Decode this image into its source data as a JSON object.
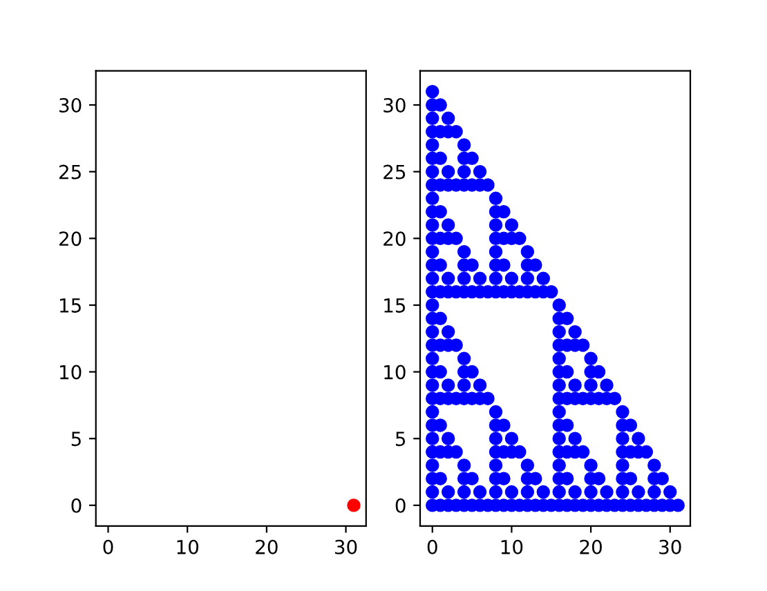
{
  "chart_data": [
    {
      "type": "scatter",
      "xlim": [
        -1.55,
        32.55
      ],
      "ylim": [
        -1.55,
        32.55
      ],
      "xticks": [
        0,
        10,
        20,
        30
      ],
      "yticks": [
        0,
        5,
        10,
        15,
        20,
        25,
        30
      ],
      "grid": false,
      "legend": false,
      "marker": "circle",
      "series": [
        {
          "color": "#ff0000",
          "x": [
            31
          ],
          "values": [
            0
          ]
        }
      ]
    },
    {
      "type": "scatter",
      "xlim": [
        -1.55,
        32.55
      ],
      "ylim": [
        -1.55,
        32.55
      ],
      "xticks": [
        0,
        10,
        20,
        30
      ],
      "yticks": [
        0,
        5,
        10,
        15,
        20,
        25,
        30
      ],
      "grid": false,
      "legend": false,
      "marker": "circle",
      "series": [
        {
          "color": "#0000ff",
          "x": [
            0,
            1,
            2,
            3,
            4,
            5,
            6,
            7,
            8,
            9,
            10,
            11,
            12,
            13,
            14,
            15,
            16,
            17,
            18,
            19,
            20,
            21,
            22,
            23,
            24,
            25,
            26,
            27,
            28,
            29,
            30,
            31
          ],
          "values": [
            0,
            0,
            0,
            0,
            0,
            0,
            0,
            0,
            0,
            0,
            0,
            0,
            0,
            0,
            0,
            0,
            0,
            0,
            0,
            0,
            0,
            0,
            0,
            0,
            0,
            0,
            0,
            0,
            0,
            0,
            0,
            0
          ]
        },
        {
          "color": "#0000ff",
          "x": [
            0,
            2,
            4,
            6,
            8,
            10,
            12,
            14,
            16,
            18,
            20,
            22,
            24,
            26,
            28,
            30
          ],
          "values": [
            1,
            1,
            1,
            1,
            1,
            1,
            1,
            1,
            1,
            1,
            1,
            1,
            1,
            1,
            1,
            1
          ]
        },
        {
          "color": "#0000ff",
          "x": [
            0,
            1,
            4,
            5,
            8,
            9,
            12,
            13,
            16,
            17,
            20,
            21,
            24,
            25,
            28,
            29
          ],
          "values": [
            2,
            2,
            2,
            2,
            2,
            2,
            2,
            2,
            2,
            2,
            2,
            2,
            2,
            2,
            2,
            2
          ]
        },
        {
          "color": "#0000ff",
          "x": [
            0,
            4,
            8,
            12,
            16,
            20,
            24,
            28
          ],
          "values": [
            3,
            3,
            3,
            3,
            3,
            3,
            3,
            3
          ]
        },
        {
          "color": "#0000ff",
          "x": [
            0,
            1,
            2,
            3,
            8,
            9,
            10,
            11,
            16,
            17,
            18,
            19,
            24,
            25,
            26,
            27
          ],
          "values": [
            4,
            4,
            4,
            4,
            4,
            4,
            4,
            4,
            4,
            4,
            4,
            4,
            4,
            4,
            4,
            4
          ]
        },
        {
          "color": "#0000ff",
          "x": [
            0,
            2,
            8,
            10,
            16,
            18,
            24,
            26
          ],
          "values": [
            5,
            5,
            5,
            5,
            5,
            5,
            5,
            5
          ]
        },
        {
          "color": "#0000ff",
          "x": [
            0,
            1,
            8,
            9,
            16,
            17,
            24,
            25
          ],
          "values": [
            6,
            6,
            6,
            6,
            6,
            6,
            6,
            6
          ]
        },
        {
          "color": "#0000ff",
          "x": [
            0,
            8,
            16,
            24
          ],
          "values": [
            7,
            7,
            7,
            7
          ]
        },
        {
          "color": "#0000ff",
          "x": [
            0,
            1,
            2,
            3,
            4,
            5,
            6,
            7,
            16,
            17,
            18,
            19,
            20,
            21,
            22,
            23
          ],
          "values": [
            8,
            8,
            8,
            8,
            8,
            8,
            8,
            8,
            8,
            8,
            8,
            8,
            8,
            8,
            8,
            8
          ]
        },
        {
          "color": "#0000ff",
          "x": [
            0,
            2,
            4,
            6,
            16,
            18,
            20,
            22
          ],
          "values": [
            9,
            9,
            9,
            9,
            9,
            9,
            9,
            9
          ]
        },
        {
          "color": "#0000ff",
          "x": [
            0,
            1,
            4,
            5,
            16,
            17,
            20,
            21
          ],
          "values": [
            10,
            10,
            10,
            10,
            10,
            10,
            10,
            10
          ]
        },
        {
          "color": "#0000ff",
          "x": [
            0,
            4,
            16,
            20
          ],
          "values": [
            11,
            11,
            11,
            11
          ]
        },
        {
          "color": "#0000ff",
          "x": [
            0,
            1,
            2,
            3,
            16,
            17,
            18,
            19
          ],
          "values": [
            12,
            12,
            12,
            12,
            12,
            12,
            12,
            12
          ]
        },
        {
          "color": "#0000ff",
          "x": [
            0,
            2,
            16,
            18
          ],
          "values": [
            13,
            13,
            13,
            13
          ]
        },
        {
          "color": "#0000ff",
          "x": [
            0,
            1,
            16,
            17
          ],
          "values": [
            14,
            14,
            14,
            14
          ]
        },
        {
          "color": "#0000ff",
          "x": [
            0,
            16
          ],
          "values": [
            15,
            15
          ]
        },
        {
          "color": "#0000ff",
          "x": [
            0,
            1,
            2,
            3,
            4,
            5,
            6,
            7,
            8,
            9,
            10,
            11,
            12,
            13,
            14,
            15
          ],
          "values": [
            16,
            16,
            16,
            16,
            16,
            16,
            16,
            16,
            16,
            16,
            16,
            16,
            16,
            16,
            16,
            16
          ]
        },
        {
          "color": "#0000ff",
          "x": [
            0,
            2,
            4,
            6,
            8,
            10,
            12,
            14
          ],
          "values": [
            17,
            17,
            17,
            17,
            17,
            17,
            17,
            17
          ]
        },
        {
          "color": "#0000ff",
          "x": [
            0,
            1,
            4,
            5,
            8,
            9,
            12,
            13
          ],
          "values": [
            18,
            18,
            18,
            18,
            18,
            18,
            18,
            18
          ]
        },
        {
          "color": "#0000ff",
          "x": [
            0,
            4,
            8,
            12
          ],
          "values": [
            19,
            19,
            19,
            19
          ]
        },
        {
          "color": "#0000ff",
          "x": [
            0,
            1,
            2,
            3,
            8,
            9,
            10,
            11
          ],
          "values": [
            20,
            20,
            20,
            20,
            20,
            20,
            20,
            20
          ]
        },
        {
          "color": "#0000ff",
          "x": [
            0,
            2,
            8,
            10
          ],
          "values": [
            21,
            21,
            21,
            21
          ]
        },
        {
          "color": "#0000ff",
          "x": [
            0,
            1,
            8,
            9
          ],
          "values": [
            22,
            22,
            22,
            22
          ]
        },
        {
          "color": "#0000ff",
          "x": [
            0,
            8
          ],
          "values": [
            23,
            23
          ]
        },
        {
          "color": "#0000ff",
          "x": [
            0,
            1,
            2,
            3,
            4,
            5,
            6,
            7
          ],
          "values": [
            24,
            24,
            24,
            24,
            24,
            24,
            24,
            24
          ]
        },
        {
          "color": "#0000ff",
          "x": [
            0,
            2,
            4,
            6
          ],
          "values": [
            25,
            25,
            25,
            25
          ]
        },
        {
          "color": "#0000ff",
          "x": [
            0,
            1,
            4,
            5
          ],
          "values": [
            26,
            26,
            26,
            26
          ]
        },
        {
          "color": "#0000ff",
          "x": [
            0,
            4
          ],
          "values": [
            27,
            27
          ]
        },
        {
          "color": "#0000ff",
          "x": [
            0,
            1,
            2,
            3
          ],
          "values": [
            28,
            28,
            28,
            28
          ]
        },
        {
          "color": "#0000ff",
          "x": [
            0,
            2
          ],
          "values": [
            29,
            29
          ]
        },
        {
          "color": "#0000ff",
          "x": [
            0,
            1
          ],
          "values": [
            30,
            30
          ]
        },
        {
          "color": "#0000ff",
          "x": [
            0
          ],
          "values": [
            31
          ]
        }
      ]
    }
  ]
}
